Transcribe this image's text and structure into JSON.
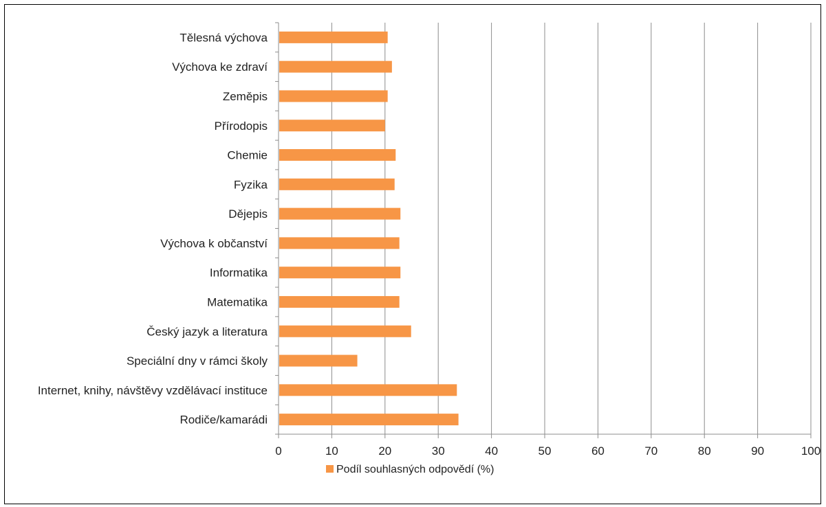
{
  "chart_data": {
    "type": "bar",
    "orientation": "horizontal",
    "categories": [
      "Tělesná výchova",
      "Výchova ke zdraví",
      "Zeměpis",
      "Přírodopis",
      "Chemie",
      "Fyzika",
      "Dějepis",
      "Výchova k občanství",
      "Informatika",
      "Matematika",
      "Český jazyk a literatura",
      "Speciální dny v rámci školy",
      "Internet, knihy, návštěvy vzdělávací instituce",
      "Rodiče/kamarádi"
    ],
    "series": [
      {
        "name": "Podíl souhlasných odpovědí (%)",
        "color": "#f79646",
        "values": [
          20.5,
          21.3,
          20.5,
          20.0,
          22.0,
          21.8,
          22.9,
          22.7,
          22.9,
          22.7,
          24.9,
          14.8,
          33.5,
          33.8
        ]
      }
    ],
    "xlim": [
      0,
      100
    ],
    "xticks": [
      "0",
      "10",
      "20",
      "30",
      "40",
      "50",
      "60",
      "70",
      "80",
      "90",
      "100"
    ],
    "grid": true,
    "legend_position": "bottom",
    "title": "",
    "xlabel": "",
    "ylabel": ""
  },
  "colors": {
    "bar": "#f79646",
    "gridline": "#8c8c8c",
    "axis": "#8c8c8c",
    "text": "#222222"
  }
}
